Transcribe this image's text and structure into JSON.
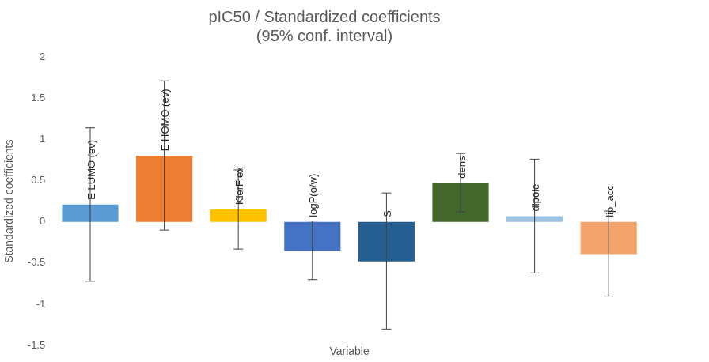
{
  "chart_data": {
    "type": "bar",
    "title": "pIC50 / Standardized coefficients",
    "subtitle": "(95% conf. interval)",
    "x_label": "Variable",
    "y_label": "Standardized coefficients",
    "categories": [
      "E LUMO (ev)",
      "E HOMO (ev)",
      "KierFlex",
      "logP(o/w)",
      "S",
      "dens",
      "dipole",
      "lip_acc"
    ],
    "values": [
      0.21,
      0.8,
      0.15,
      -0.35,
      -0.48,
      0.47,
      0.07,
      -0.39
    ],
    "error_low": [
      -0.72,
      -0.1,
      -0.33,
      -0.7,
      -1.3,
      0.12,
      -0.62,
      -0.9
    ],
    "error_high": [
      1.14,
      1.71,
      0.63,
      0.01,
      0.35,
      0.83,
      0.76,
      0.13
    ],
    "colors": [
      "#5b9bd5",
      "#ed7d31",
      "#ffc000",
      "#4472c4",
      "#255e91",
      "#43682b",
      "#9dc3e6",
      "#f4a46b"
    ],
    "ylim": [
      -1.5,
      2
    ],
    "yticks": [
      -1.5,
      -1,
      -0.5,
      0,
      0.5,
      1,
      1.5,
      2
    ],
    "grid": false,
    "tick_labels": "y"
  }
}
